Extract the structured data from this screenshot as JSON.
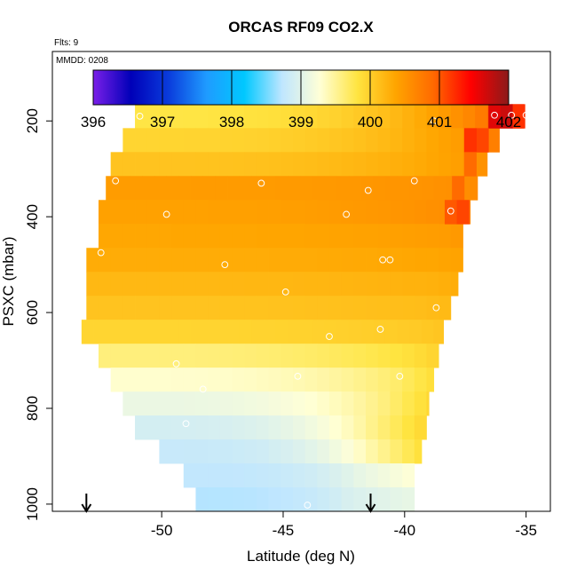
{
  "chart_data": {
    "type": "heatmap",
    "title": "ORCAS RF09 CO2.X",
    "flights_note": "Flts: 9",
    "date_note": "MMDD: 0208",
    "xlabel": "Latitude (deg N)",
    "ylabel": "PSXC (mbar)",
    "xlim": [
      -54.5,
      -34
    ],
    "ylim": [
      1015,
      55
    ],
    "y_reversed": true,
    "x_ticks": [
      -50,
      -45,
      -40,
      -35
    ],
    "x_tick_labels": [
      "-50",
      "-45",
      "-40",
      "-35"
    ],
    "y_ticks": [
      200,
      400,
      600,
      800,
      1000
    ],
    "y_tick_labels": [
      "200",
      "400",
      "600",
      "800",
      "1000"
    ],
    "colorbar": {
      "min": 396,
      "max": 402,
      "ticks": [
        396,
        397,
        398,
        399,
        400,
        401,
        402
      ],
      "tick_labels": [
        "396",
        "397",
        "398",
        "399",
        "400",
        "401",
        "402"
      ],
      "colors": [
        "#7a1fe8",
        "#0000b8",
        "#0a3cdc",
        "#1f9bff",
        "#00c8ff",
        "#bfe6ff",
        "#ffffd6",
        "#ffe440",
        "#ffa500",
        "#ff6a00",
        "#ff0000",
        "#8b1a1a"
      ]
    },
    "rows": [
      {
        "p": 190,
        "lat_min": -51.1,
        "lat_max": -35.1,
        "co2": 399.8,
        "high_lat": -37.3,
        "high_co2": 401.3
      },
      {
        "p": 240,
        "lat_min": -51.6,
        "lat_max": -36.1,
        "co2": 399.95,
        "high_lat": -38.0,
        "high_co2": 400.8
      },
      {
        "p": 290,
        "lat_min": -52.1,
        "lat_max": -36.6,
        "co2": 400.1,
        "high_lat": -38.3,
        "high_co2": 400.6
      },
      {
        "p": 340,
        "lat_min": -52.3,
        "lat_max": -37.0,
        "co2": 400.45,
        "high_lat": -39.0,
        "high_co2": 400.6
      },
      {
        "p": 390,
        "lat_min": -52.6,
        "lat_max": -37.3,
        "co2": 400.4,
        "high_lat": -38.5,
        "high_co2": 400.7
      },
      {
        "p": 440,
        "lat_min": -52.6,
        "lat_max": -37.6,
        "co2": 400.35,
        "high_lat": -38.8,
        "high_co2": 400.5
      },
      {
        "p": 490,
        "lat_min": -53.1,
        "lat_max": -37.6,
        "co2": 400.3,
        "high_lat": -39.0,
        "high_co2": 400.4
      },
      {
        "p": 540,
        "lat_min": -53.1,
        "lat_max": -37.8,
        "co2": 400.2,
        "high_lat": -39.2,
        "high_co2": 400.3
      },
      {
        "p": 590,
        "lat_min": -53.1,
        "lat_max": -38.1,
        "co2": 400.1,
        "high_lat": -39.4,
        "high_co2": 400.2
      },
      {
        "p": 640,
        "lat_min": -53.3,
        "lat_max": -38.4,
        "co2": 399.95,
        "high_lat": -39.8,
        "high_co2": 400.1
      },
      {
        "p": 690,
        "lat_min": -52.6,
        "lat_max": -38.6,
        "co2": 399.6,
        "high_lat": -40.2,
        "high_co2": 400.0
      },
      {
        "p": 740,
        "lat_min": -52.1,
        "lat_max": -38.8,
        "co2": 399.3,
        "high_lat": -40.6,
        "high_co2": 399.9
      },
      {
        "p": 790,
        "lat_min": -51.6,
        "lat_max": -39.0,
        "co2": 399.1,
        "high_lat": -41.0,
        "high_co2": 399.95
      },
      {
        "p": 840,
        "lat_min": -51.1,
        "lat_max": -39.1,
        "co2": 398.9,
        "high_lat": -41.5,
        "high_co2": 400.0
      },
      {
        "p": 890,
        "lat_min": -50.1,
        "lat_max": -39.3,
        "co2": 398.8,
        "high_lat": -41.5,
        "high_co2": 399.9
      },
      {
        "p": 940,
        "lat_min": -49.1,
        "lat_max": -39.6,
        "co2": 398.75,
        "high_lat": -42.0,
        "high_co2": 399.3
      },
      {
        "p": 990,
        "lat_min": -48.6,
        "lat_max": -39.6,
        "co2": 398.7,
        "high_lat": -42.5,
        "high_co2": 399.1
      }
    ],
    "hot_cells": [
      {
        "lat": -36.3,
        "p": 190,
        "co2": 401.6
      },
      {
        "lat": -35.8,
        "p": 190,
        "co2": 401.7
      },
      {
        "lat": -35.3,
        "p": 190,
        "co2": 401.2
      },
      {
        "lat": -36.8,
        "p": 240,
        "co2": 401.1
      },
      {
        "lat": -37.3,
        "p": 240,
        "co2": 401.2
      },
      {
        "lat": -37.3,
        "p": 290,
        "co2": 400.9
      },
      {
        "lat": -37.8,
        "p": 340,
        "co2": 400.9
      },
      {
        "lat": -38.1,
        "p": 390,
        "co2": 401.0
      },
      {
        "lat": -37.6,
        "p": 390,
        "co2": 401.1
      }
    ],
    "sample_points": [
      {
        "lat": -50.9,
        "p": 190
      },
      {
        "lat": -38.8,
        "p": 200
      },
      {
        "lat": -36.3,
        "p": 188
      },
      {
        "lat": -35.6,
        "p": 188
      },
      {
        "lat": -35.0,
        "p": 188
      },
      {
        "lat": -51.9,
        "p": 325
      },
      {
        "lat": -45.9,
        "p": 330
      },
      {
        "lat": -39.6,
        "p": 325
      },
      {
        "lat": -41.5,
        "p": 345
      },
      {
        "lat": -49.8,
        "p": 395
      },
      {
        "lat": -42.4,
        "p": 395
      },
      {
        "lat": -38.1,
        "p": 388
      },
      {
        "lat": -52.5,
        "p": 475
      },
      {
        "lat": -47.4,
        "p": 500
      },
      {
        "lat": -40.9,
        "p": 490
      },
      {
        "lat": -40.6,
        "p": 490
      },
      {
        "lat": -44.9,
        "p": 557
      },
      {
        "lat": -38.7,
        "p": 590
      },
      {
        "lat": -43.1,
        "p": 650
      },
      {
        "lat": -41.0,
        "p": 635
      },
      {
        "lat": -49.4,
        "p": 707
      },
      {
        "lat": -44.4,
        "p": 733
      },
      {
        "lat": -40.2,
        "p": 733
      },
      {
        "lat": -48.3,
        "p": 760
      },
      {
        "lat": -49.0,
        "p": 832
      },
      {
        "lat": -48.8,
        "p": 995
      },
      {
        "lat": -44.0,
        "p": 1002
      }
    ],
    "flight_markers_lat": [
      -53.1,
      -41.4
    ]
  }
}
